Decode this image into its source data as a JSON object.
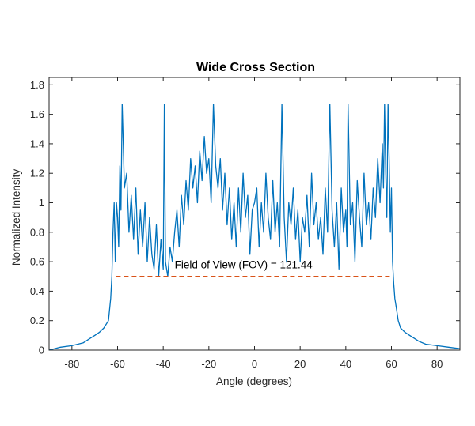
{
  "chart_data": {
    "type": "line",
    "title": "Wide Cross Section",
    "xlabel": "Angle (degrees)",
    "ylabel": "Normalized Intensity",
    "xlim": [
      -90,
      90
    ],
    "ylim": [
      0,
      1.85
    ],
    "xticks": [
      -80,
      -60,
      -40,
      -20,
      0,
      20,
      40,
      60,
      80
    ],
    "yticks": [
      0,
      0.2,
      0.4,
      0.6,
      0.8,
      1,
      1.2,
      1.4,
      1.6,
      1.8
    ],
    "xtick_labels": [
      "-80",
      "-60",
      "-40",
      "-20",
      "0",
      "20",
      "40",
      "60",
      "80"
    ],
    "ytick_labels": [
      "0",
      "0.2",
      "0.4",
      "0.6",
      "0.8",
      "1",
      "1.2",
      "1.4",
      "1.6",
      "1.8"
    ],
    "grid": false,
    "series": [
      {
        "color": "#0072BD",
        "style": "solid",
        "x": [
          -90,
          -85,
          -80,
          -75,
          -72,
          -70,
          -68,
          -66,
          -64,
          -63,
          -62.5,
          -62,
          -61.5,
          -61,
          -60.5,
          -60,
          -59.5,
          -59,
          -58.5,
          -58,
          -57.5,
          -57,
          -56,
          -55,
          -54,
          -53,
          -52,
          -51,
          -50,
          -49,
          -48,
          -47,
          -46,
          -45,
          -44,
          -43,
          -42,
          -41,
          -40,
          -39.5,
          -39,
          -38,
          -37,
          -36,
          -35,
          -34,
          -33,
          -32,
          -31,
          -30,
          -29,
          -28,
          -27,
          -26,
          -25,
          -24,
          -23,
          -22,
          -21,
          -20,
          -19,
          -18,
          -17,
          -16,
          -15,
          -14,
          -13,
          -12,
          -11,
          -10,
          -9,
          -8,
          -7,
          -6,
          -5,
          -4,
          -3,
          -2,
          -1,
          0,
          1,
          2,
          3,
          4,
          5,
          6,
          7,
          8,
          9,
          10,
          11,
          12,
          13,
          14,
          15,
          16,
          17,
          18,
          19,
          20,
          21,
          22,
          23,
          24,
          25,
          26,
          27,
          28,
          29,
          30,
          31,
          32,
          33,
          34,
          35,
          36,
          37,
          38,
          39,
          40,
          40.5,
          41,
          42,
          43,
          44,
          45,
          46,
          47,
          48,
          49,
          50,
          51,
          52,
          53,
          54,
          55,
          56,
          56.5,
          57,
          57.5,
          58,
          58.5,
          59,
          59.5,
          60,
          60.5,
          61,
          61.5,
          62,
          62.5,
          63,
          64,
          66,
          68,
          70,
          72,
          75,
          80,
          85,
          90
        ],
        "y": [
          0,
          0.02,
          0.03,
          0.05,
          0.08,
          0.1,
          0.12,
          0.15,
          0.2,
          0.35,
          0.5,
          0.8,
          1.0,
          0.6,
          1.0,
          0.9,
          0.7,
          1.25,
          0.95,
          1.67,
          1.4,
          1.1,
          1.2,
          0.8,
          1.05,
          0.75,
          1.1,
          0.65,
          0.95,
          0.7,
          1.0,
          0.6,
          0.9,
          0.65,
          0.55,
          0.85,
          0.5,
          0.75,
          0.55,
          1.67,
          0.6,
          0.5,
          0.7,
          0.6,
          0.8,
          0.95,
          0.7,
          1.05,
          0.85,
          1.15,
          0.95,
          1.3,
          1.1,
          1.25,
          1.0,
          1.35,
          1.15,
          1.45,
          1.2,
          1.3,
          1.0,
          1.67,
          1.25,
          1.1,
          1.3,
          0.95,
          1.2,
          0.85,
          1.1,
          0.75,
          1.0,
          0.7,
          1.1,
          0.8,
          1.2,
          0.9,
          1.05,
          0.65,
          0.95,
          1.0,
          1.1,
          0.7,
          1.0,
          0.8,
          1.2,
          0.9,
          0.75,
          1.15,
          0.8,
          1.0,
          0.7,
          1.67,
          0.9,
          0.6,
          1.0,
          0.85,
          1.1,
          0.75,
          0.95,
          0.6,
          0.9,
          0.8,
          1.05,
          0.7,
          1.2,
          0.85,
          1.0,
          0.75,
          0.9,
          0.65,
          1.1,
          0.8,
          1.67,
          0.95,
          0.7,
          1.0,
          0.55,
          1.1,
          0.8,
          0.95,
          0.7,
          1.67,
          0.85,
          1.0,
          0.6,
          1.15,
          0.9,
          0.7,
          1.2,
          0.85,
          1.0,
          0.75,
          1.1,
          0.9,
          1.3,
          1.0,
          1.4,
          1.1,
          1.67,
          1.2,
          0.9,
          1.67,
          1.3,
          0.8,
          1.1,
          0.6,
          0.45,
          0.35,
          0.3,
          0.25,
          0.2,
          0.15,
          0.12,
          0.1,
          0.08,
          0.06,
          0.04,
          0.03,
          0.02,
          0.01
        ]
      },
      {
        "color": "#D95319",
        "style": "dashed",
        "x": [
          -60.72,
          60.72
        ],
        "y": [
          0.5,
          0.5
        ]
      }
    ],
    "annotation": {
      "text": "Field of View (FOV) = 121.44",
      "x": -35,
      "y": 0.555
    }
  }
}
